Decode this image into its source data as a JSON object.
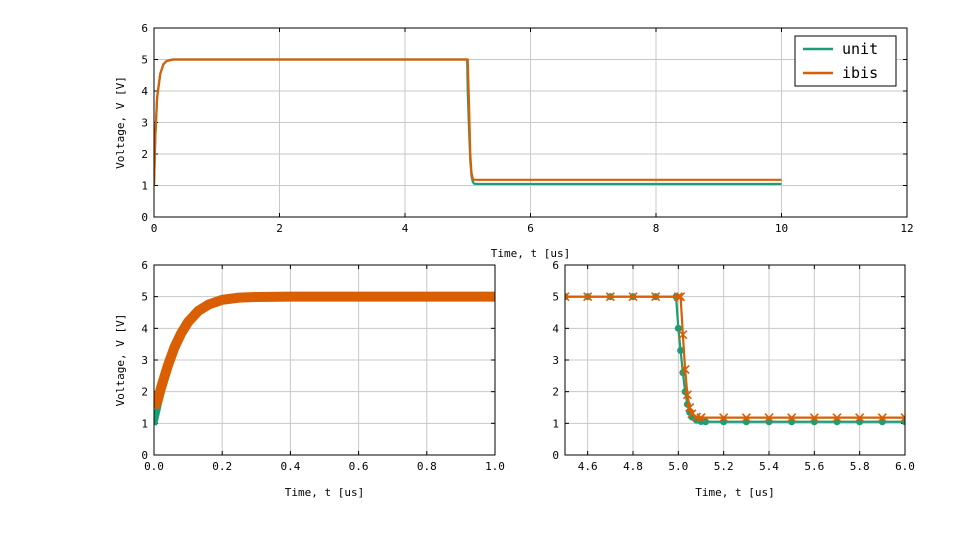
{
  "colors": {
    "unit": "#1b9e77",
    "ibis": "#d95f02"
  },
  "legend": {
    "entries": [
      "unit",
      "ibis"
    ],
    "placement": "top-right"
  },
  "chart_data": [
    {
      "id": "top",
      "type": "line",
      "xlabel": "Time, t [us]",
      "ylabel": "Voltage, V [V]",
      "xlim": [
        0,
        12
      ],
      "ylim": [
        0,
        6
      ],
      "xticks": [
        0,
        2,
        4,
        6,
        8,
        10,
        12
      ],
      "yticks": [
        0,
        1,
        2,
        3,
        4,
        5,
        6
      ],
      "grid": true,
      "series": [
        {
          "name": "unit",
          "x": [
            0,
            0.02,
            0.05,
            0.1,
            0.15,
            0.2,
            0.3,
            0.5,
            4.99,
            5.0,
            5.02,
            5.04,
            5.06,
            5.08,
            5.1,
            5.15,
            10
          ],
          "y": [
            1.0,
            2.5,
            3.8,
            4.55,
            4.85,
            4.95,
            5.0,
            5.0,
            5.0,
            4.0,
            2.8,
            1.8,
            1.3,
            1.12,
            1.06,
            1.05,
            1.05
          ]
        },
        {
          "name": "ibis",
          "x": [
            0,
            0.02,
            0.05,
            0.1,
            0.15,
            0.2,
            0.3,
            0.5,
            5.0,
            5.02,
            5.04,
            5.06,
            5.08,
            5.1,
            5.15,
            10
          ],
          "y": [
            1.0,
            2.5,
            3.8,
            4.55,
            4.85,
            4.95,
            5.0,
            5.0,
            5.0,
            3.6,
            2.0,
            1.4,
            1.22,
            1.18,
            1.18,
            1.18
          ]
        }
      ]
    },
    {
      "id": "bottom-left",
      "type": "line",
      "xlabel": "Time, t [us]",
      "ylabel": "Voltage, V [V]",
      "xlim": [
        0.0,
        1.0
      ],
      "ylim": [
        0,
        6
      ],
      "xticks": [
        0.0,
        0.2,
        0.4,
        0.6,
        0.8,
        1.0
      ],
      "yticks": [
        0,
        1,
        2,
        3,
        4,
        5,
        6
      ],
      "grid": true,
      "series": [
        {
          "name": "unit",
          "x": [
            0.0,
            0.01,
            0.02,
            0.04,
            0.06,
            0.08,
            0.1,
            0.13,
            0.16,
            0.2,
            0.25,
            0.3,
            0.4,
            0.6,
            0.8,
            1.0
          ],
          "y": [
            0.95,
            1.4,
            1.9,
            2.7,
            3.3,
            3.8,
            4.15,
            4.5,
            4.72,
            4.88,
            4.96,
            4.99,
            5.0,
            5.0,
            5.0,
            5.0
          ]
        },
        {
          "name": "ibis",
          "x": [
            0.0,
            0.01,
            0.02,
            0.04,
            0.06,
            0.08,
            0.1,
            0.13,
            0.16,
            0.2,
            0.25,
            0.3,
            0.4,
            0.6,
            0.8,
            1.0
          ],
          "y": [
            1.5,
            1.7,
            2.1,
            2.8,
            3.4,
            3.85,
            4.2,
            4.55,
            4.75,
            4.9,
            4.97,
            4.99,
            5.0,
            5.0,
            5.0,
            5.0
          ]
        }
      ]
    },
    {
      "id": "bottom-right",
      "type": "line",
      "xlabel": "Time, t [us]",
      "ylabel": "",
      "xlim": [
        4.5,
        6.0
      ],
      "ylim": [
        0,
        6
      ],
      "xticks": [
        "4.6",
        "4.8",
        "5.0",
        "5.2",
        "5.4",
        "5.6",
        "5.8",
        "6.0"
      ],
      "yticks": [
        0,
        1,
        2,
        3,
        4,
        5,
        6
      ],
      "grid": true,
      "series": [
        {
          "name": "unit",
          "x": [
            4.5,
            4.99,
            5.0,
            5.01,
            5.02,
            5.03,
            5.04,
            5.05,
            5.06,
            5.08,
            5.1,
            5.12,
            5.2,
            5.6,
            6.0
          ],
          "y": [
            5.0,
            5.0,
            4.0,
            3.3,
            2.6,
            2.0,
            1.6,
            1.35,
            1.2,
            1.1,
            1.06,
            1.05,
            1.05,
            1.05,
            1.05
          ]
        },
        {
          "name": "ibis",
          "x": [
            4.5,
            5.01,
            5.02,
            5.03,
            5.04,
            5.05,
            5.06,
            5.08,
            5.1,
            5.12,
            5.2,
            5.6,
            6.0
          ],
          "y": [
            5.0,
            5.0,
            3.8,
            2.7,
            1.9,
            1.5,
            1.3,
            1.2,
            1.18,
            1.18,
            1.18,
            1.18,
            1.18
          ]
        }
      ]
    }
  ]
}
